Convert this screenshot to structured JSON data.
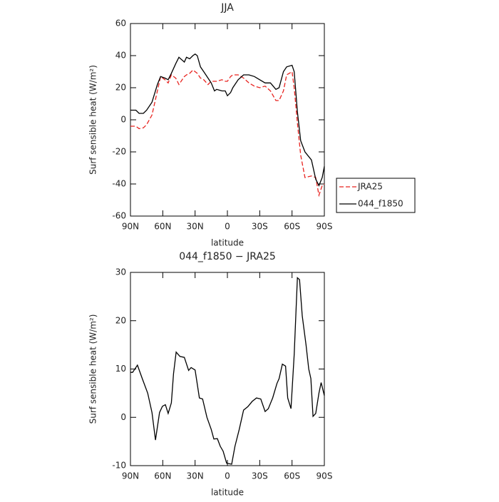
{
  "chart_data": [
    {
      "type": "line",
      "title": "JJA",
      "xlabel": "latitude",
      "ylabel": "Surf sensible heat (W/m²)",
      "x": [
        90,
        85,
        82,
        78,
        75,
        70,
        65,
        62,
        58,
        55,
        52,
        48,
        45,
        40,
        38,
        35,
        32,
        30,
        28,
        25,
        22,
        18,
        15,
        12,
        10,
        5,
        2,
        0,
        -3,
        -5,
        -10,
        -15,
        -20,
        -25,
        -30,
        -35,
        -40,
        -45,
        -48,
        -52,
        -55,
        -60,
        -62,
        -65,
        -68,
        -72,
        -78,
        -82,
        -85,
        -88,
        -90
      ],
      "series": [
        {
          "name": "JRA25",
          "color": "#e8231f",
          "style": "dashed",
          "values": [
            -4,
            -4,
            -5.5,
            -5,
            -3,
            3,
            18,
            27,
            25,
            23,
            28,
            26,
            22,
            27,
            28,
            29,
            31,
            30,
            29,
            26,
            25,
            22,
            24,
            24,
            24,
            25,
            24,
            24,
            27,
            28,
            28,
            26,
            23,
            21,
            20,
            21,
            18,
            12,
            12,
            18,
            28,
            30,
            20,
            -2,
            -22,
            -36,
            -35,
            -36,
            -47,
            -41,
            -40
          ]
        },
        {
          "name": "044_f1850",
          "color": "#000000",
          "style": "solid",
          "values": [
            6,
            6,
            4,
            4,
            6,
            11,
            22,
            27,
            26,
            25,
            29,
            35,
            39,
            36,
            39,
            38,
            40,
            41,
            40,
            33,
            30,
            26,
            23,
            18,
            19,
            18,
            18,
            15,
            17,
            20,
            25,
            28,
            28,
            27,
            25,
            23,
            23,
            19,
            20,
            30,
            33,
            34,
            30,
            5,
            -13,
            -20,
            -25,
            -37,
            -41,
            -36,
            -29
          ]
        }
      ],
      "xlim": [
        90,
        -90
      ],
      "xticks": [
        {
          "value": 90,
          "label": "90N"
        },
        {
          "value": 60,
          "label": "60N"
        },
        {
          "value": 30,
          "label": "30N"
        },
        0,
        {
          "value": -30,
          "label": "30S"
        },
        {
          "value": -60,
          "label": "60S"
        },
        {
          "value": -90,
          "label": "90S"
        }
      ],
      "ylim": [
        -60,
        60
      ],
      "yticks": [
        -60,
        -40,
        -20,
        0,
        20,
        40,
        60
      ],
      "legend": "outside-right"
    },
    {
      "type": "line",
      "title": "044_f1850 − JRA25",
      "xlabel": "latitude",
      "ylabel": "Surf sensible heat (W/m²)",
      "x": [
        90,
        88,
        83.5,
        79,
        74,
        70,
        66.8,
        63,
        60.3,
        57.6,
        55,
        52,
        50,
        47.6,
        44,
        40,
        36,
        33.7,
        30,
        26,
        23,
        19,
        15,
        12.6,
        9.3,
        6.6,
        4,
        0.7,
        -4,
        -7,
        -11,
        -15,
        -19,
        -23,
        -27,
        -31,
        -35,
        -38,
        -42,
        -46,
        -48,
        -51,
        -54,
        -56,
        -59,
        -62,
        -65,
        -67,
        -69.5,
        -73,
        -75.5,
        -77.5,
        -79.5,
        -82,
        -85,
        -87,
        -90
      ],
      "values": [
        9.3,
        9.3,
        10.8,
        8,
        5,
        1,
        -4.7,
        1,
        2.3,
        2.6,
        0.8,
        3,
        9,
        13.5,
        12.6,
        12.4,
        9.7,
        10.3,
        9.8,
        4,
        3.8,
        0,
        -2.5,
        -4.5,
        -4.4,
        -6,
        -7,
        -9.5,
        -9.7,
        -6,
        -2.5,
        1.5,
        2.2,
        3.3,
        4,
        3.8,
        1.2,
        1.8,
        4,
        7,
        8,
        11,
        10.6,
        4,
        1.8,
        13,
        28.9,
        28.5,
        21,
        15,
        10,
        8,
        0.2,
        0.8,
        5,
        7.2,
        4.5
      ],
      "color": "#000000",
      "xlim": [
        90,
        -90
      ],
      "xticks": [
        {
          "value": 90,
          "label": "90N"
        },
        {
          "value": 60,
          "label": "60N"
        },
        {
          "value": 30,
          "label": "30N"
        },
        0,
        {
          "value": -30,
          "label": "30S"
        },
        {
          "value": -60,
          "label": "60S"
        },
        {
          "value": -90,
          "label": "90S"
        }
      ],
      "ylim": [
        -10,
        30
      ],
      "yticks": [
        -10,
        0,
        10,
        20,
        30
      ]
    }
  ]
}
